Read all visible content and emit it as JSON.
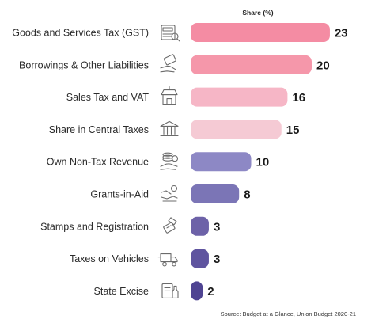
{
  "chart_data": {
    "type": "bar",
    "orientation": "horizontal",
    "column_header": "Share (%)",
    "categories": [
      "Goods and Services Tax (GST)",
      "Borrowings & Other Liabilities",
      "Sales Tax and VAT",
      "Share in Central Taxes",
      "Own Non-Tax Revenue",
      "Grants-in-Aid",
      "Stamps and Registration",
      "Taxes on Vehicles",
      "State Excise"
    ],
    "values": [
      23,
      20,
      16,
      15,
      10,
      8,
      3,
      3,
      2
    ],
    "colors": [
      "#f48ca3",
      "#f597aa",
      "#f6b6c6",
      "#f5cad4",
      "#8d88c5",
      "#7b75b6",
      "#6d62a8",
      "#5f549f",
      "#4f4492"
    ],
    "icons": [
      "gst-invoice-icon",
      "money-hand-icon",
      "shop-icon",
      "bank-icon",
      "coins-hand-icon",
      "grant-icon",
      "stamp-icon",
      "truck-icon",
      "bottle-icon"
    ],
    "grid": false,
    "legend": "none",
    "source": "Source: Budget at a Glance, Union Budget 2020-21"
  }
}
